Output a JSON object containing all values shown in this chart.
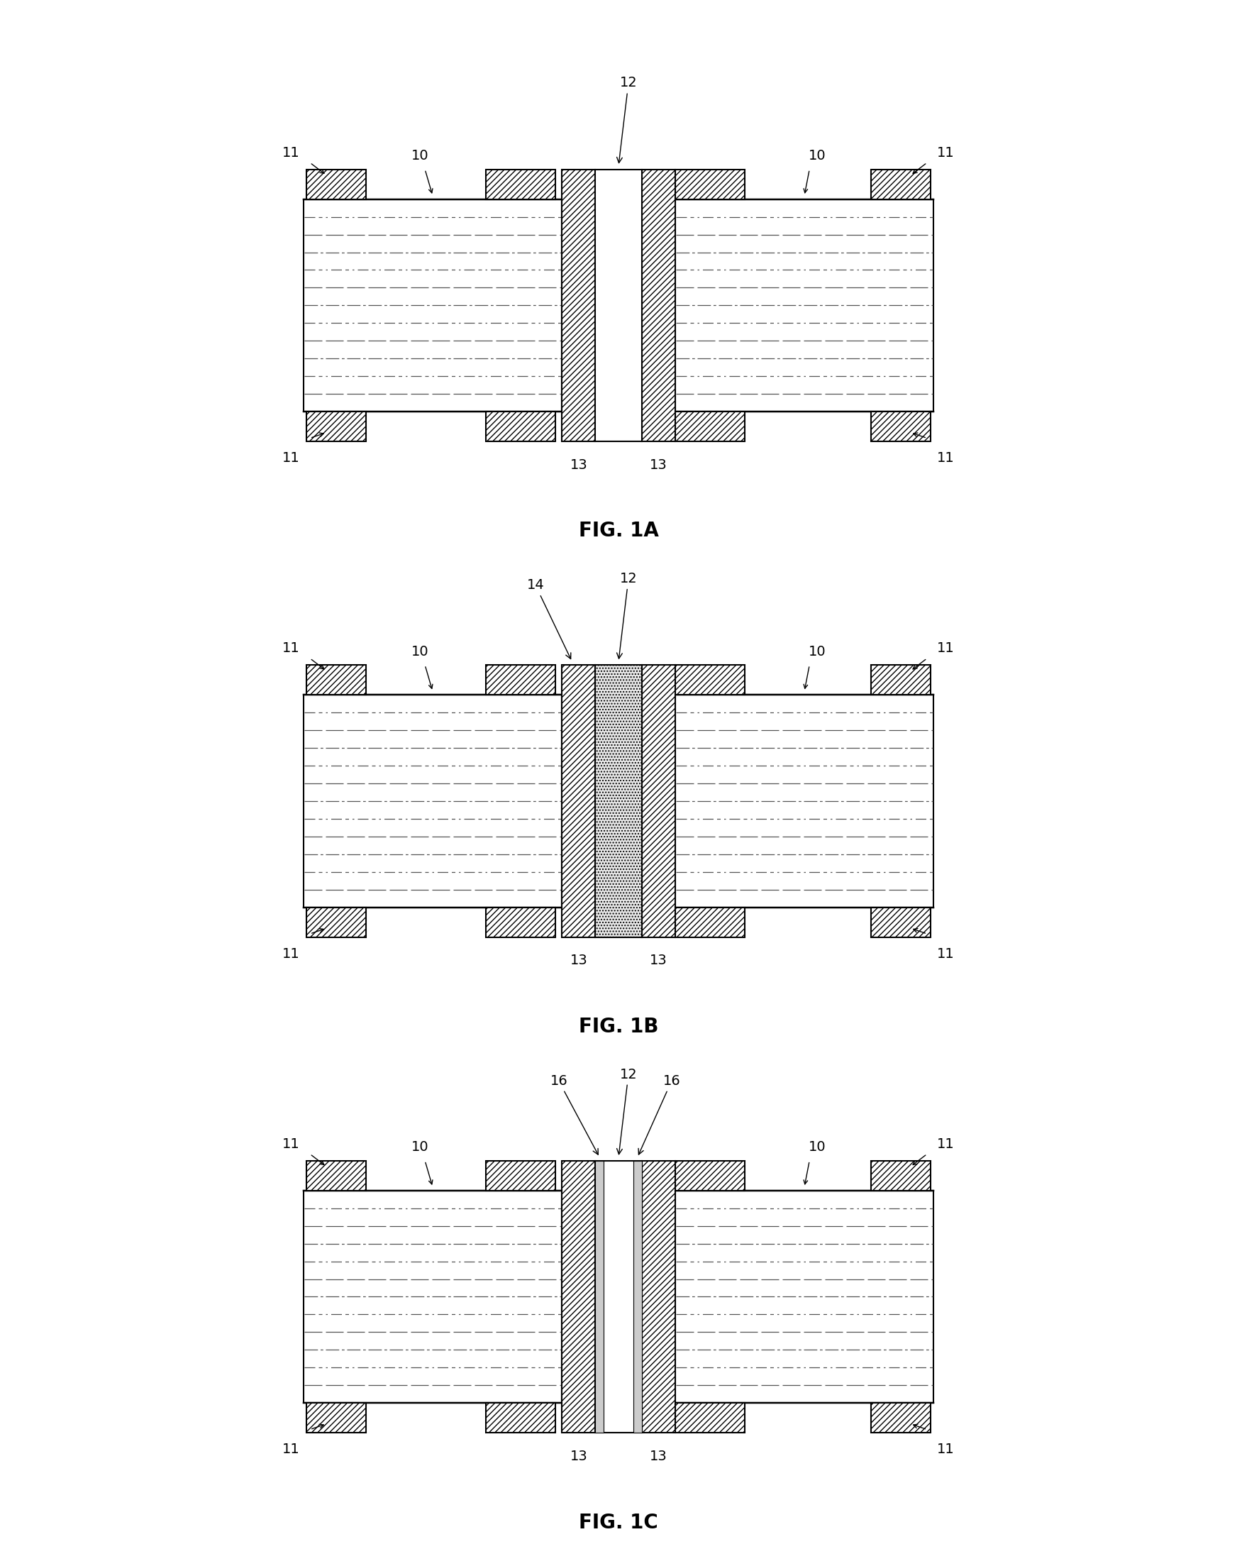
{
  "fig_labels": [
    "FIG. 1A",
    "FIG. 1B",
    "FIG. 1C"
  ],
  "bg_color": "#ffffff",
  "lw": 1.5,
  "hatch_density": "////",
  "substrate_line_color": "#555555",
  "label_fontsize": 14,
  "fig_label_fontsize": 20
}
